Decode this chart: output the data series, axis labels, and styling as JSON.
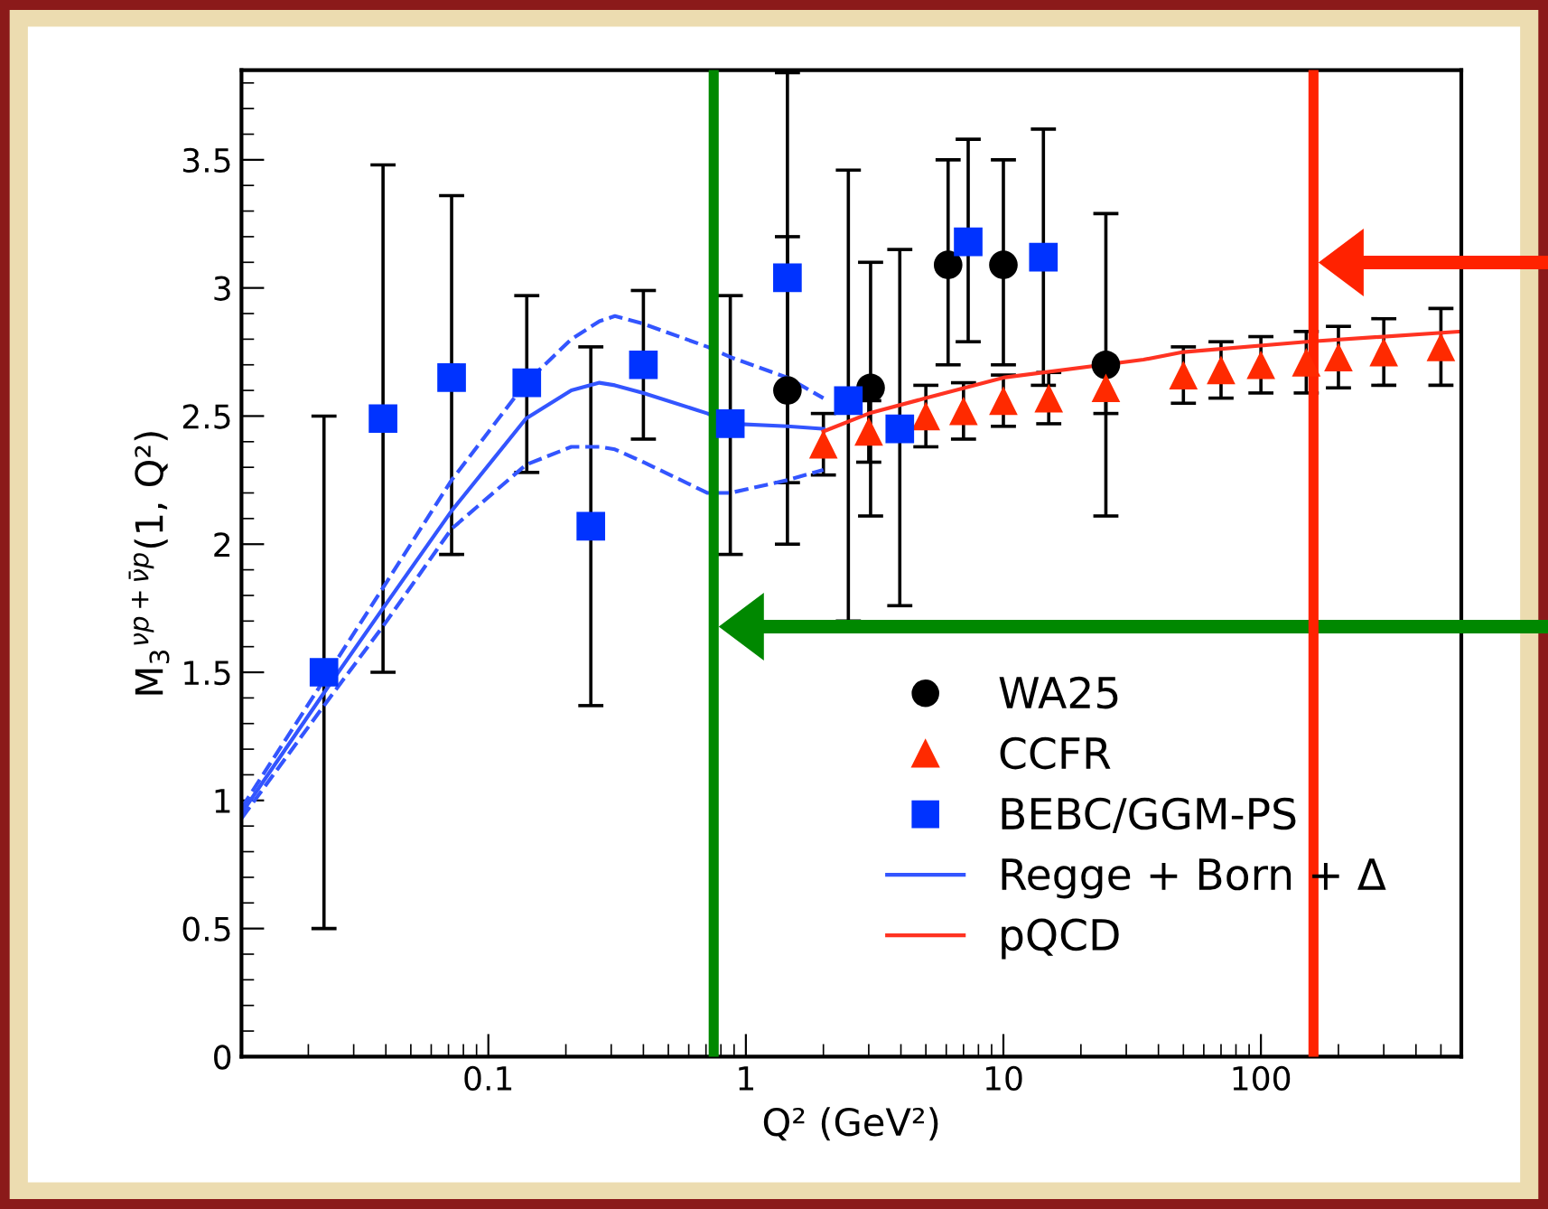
{
  "chart_data": {
    "type": "scatter",
    "xlabel": "Q² (GeV²)",
    "ylabel": "M$_{3}$$^{νp+ν̄p}$(1, Q²)",
    "log": "x",
    "xlim": [
      0.011,
      600
    ],
    "ylim": [
      0,
      3.85
    ],
    "xticks": [
      0.1,
      1,
      10,
      100
    ],
    "yticks": [
      0,
      0.5,
      1,
      1.5,
      2,
      2.5,
      3,
      3.5
    ],
    "grid": false,
    "legend": "bottom right",
    "series": [
      {
        "name": "WA25",
        "marker": "circle",
        "color": "#000000",
        "x": [
          1.45,
          3.05,
          6.1,
          10,
          25
        ],
        "values": [
          2.6,
          2.61,
          3.09,
          3.09,
          2.7
        ],
        "errors": [
          [
            2.0,
            3.84
          ],
          [
            2.11,
            3.1
          ],
          [
            2.7,
            3.5
          ],
          [
            2.7,
            3.5
          ],
          [
            2.11,
            3.29
          ]
        ]
      },
      {
        "name": "CCFR",
        "marker": "triangle",
        "color": "#ff2a00",
        "x": [
          2.0,
          3.0,
          5.0,
          7.0,
          10,
          15,
          25,
          50,
          70,
          100,
          150,
          200,
          300,
          500
        ],
        "values": [
          2.39,
          2.44,
          2.5,
          2.52,
          2.56,
          2.57,
          2.61,
          2.66,
          2.68,
          2.7,
          2.71,
          2.73,
          2.75,
          2.77
        ],
        "errors": [
          0.12,
          0.12,
          0.12,
          0.11,
          0.1,
          0.1,
          0.1,
          0.11,
          0.11,
          0.11,
          0.12,
          0.12,
          0.13,
          0.15
        ]
      },
      {
        "name": "BEBC/GGM-PS",
        "marker": "square",
        "color": "#0033ff",
        "x": [
          0.023,
          0.039,
          0.072,
          0.141,
          0.25,
          0.4,
          0.87,
          1.45,
          2.5,
          3.96,
          7.3,
          14.3
        ],
        "values": [
          1.5,
          2.49,
          2.65,
          2.63,
          2.07,
          2.7,
          2.47,
          3.04,
          2.56,
          2.45,
          3.18,
          3.12
        ],
        "errors": [
          [
            0.5,
            2.5
          ],
          [
            1.5,
            3.48
          ],
          [
            1.96,
            3.36
          ],
          [
            2.28,
            2.97
          ],
          [
            1.37,
            2.77
          ],
          [
            2.41,
            2.99
          ],
          [
            1.96,
            2.97
          ],
          [
            2.24,
            3.2
          ],
          [
            1.7,
            3.46
          ],
          [
            1.76,
            3.15
          ],
          [
            2.79,
            3.58
          ],
          [
            2.62,
            3.62
          ]
        ]
      },
      {
        "name": "Regge + Born + Δ",
        "type": "line",
        "marker": "none",
        "line_style": "solid",
        "color": "#3355ff",
        "x": [
          0.011,
          0.023,
          0.039,
          0.072,
          0.14,
          0.21,
          0.27,
          0.31,
          0.4,
          0.71,
          0.87,
          1.45,
          2.0
        ],
        "values": [
          0.95,
          1.42,
          1.75,
          2.13,
          2.49,
          2.6,
          2.63,
          2.62,
          2.59,
          2.51,
          2.47,
          2.46,
          2.45
        ]
      },
      {
        "type": "line",
        "marker": "none",
        "line_style": "dashed",
        "color": "#3355ff",
        "x": [
          0.011,
          0.023,
          0.039,
          0.072,
          0.14,
          0.21,
          0.27,
          0.31,
          0.4,
          0.71,
          0.87,
          1.45,
          2.0
        ],
        "values": [
          0.97,
          1.47,
          1.83,
          2.25,
          2.63,
          2.8,
          2.87,
          2.89,
          2.86,
          2.77,
          2.73,
          2.65,
          2.57
        ]
      },
      {
        "type": "line",
        "marker": "none",
        "line_style": "dashed",
        "color": "#3355ff",
        "x": [
          0.011,
          0.023,
          0.039,
          0.072,
          0.14,
          0.21,
          0.27,
          0.31,
          0.4,
          0.71,
          0.87,
          1.45,
          2.0
        ],
        "values": [
          0.93,
          1.37,
          1.68,
          2.06,
          2.31,
          2.38,
          2.38,
          2.37,
          2.32,
          2.2,
          2.2,
          2.25,
          2.29
        ]
      },
      {
        "name": "pQCD",
        "type": "line",
        "marker": "none",
        "line_style": "solid",
        "color": "#ff3322",
        "x": [
          2.0,
          3.0,
          5.0,
          10,
          35,
          50,
          150,
          596
        ],
        "values": [
          2.44,
          2.51,
          2.57,
          2.65,
          2.72,
          2.75,
          2.79,
          2.83
        ]
      }
    ],
    "ref_lines": [
      {
        "axis": "x",
        "value": 0.75,
        "color": "#008800"
      },
      {
        "axis": "x",
        "value": 160,
        "color": "#ff2200"
      }
    ]
  }
}
